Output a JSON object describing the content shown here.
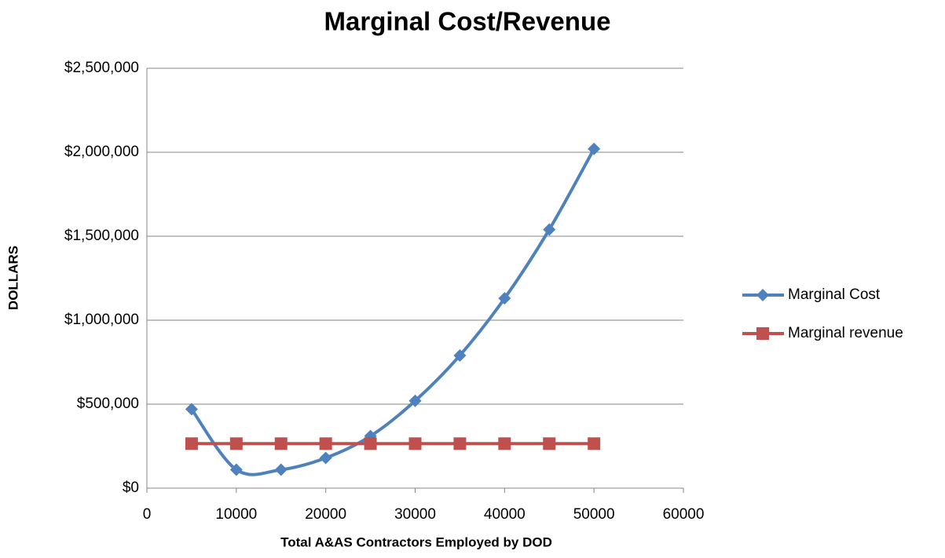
{
  "chart_data": {
    "type": "line",
    "title": "Marginal Cost/Revenue",
    "x_label": "Total A&AS Contractors Employed by DOD",
    "y_label": "DOLLARS",
    "x": [
      5000,
      10000,
      15000,
      20000,
      25000,
      30000,
      35000,
      40000,
      45000,
      50000
    ],
    "series": [
      {
        "name": "Marginal Cost",
        "color": "#4f81bd",
        "marker": "diamond",
        "smooth": true,
        "values": [
          470000,
          110000,
          110000,
          180000,
          310000,
          520000,
          790000,
          1130000,
          1540000,
          2020000
        ]
      },
      {
        "name": "Marginal revenue",
        "color": "#c0504d",
        "marker": "square",
        "smooth": false,
        "values": [
          265000,
          265000,
          265000,
          265000,
          265000,
          265000,
          265000,
          265000,
          265000,
          265000
        ]
      }
    ],
    "xlim": [
      0,
      60000
    ],
    "xticks": [
      0,
      10000,
      20000,
      30000,
      40000,
      50000,
      60000
    ],
    "ylim": [
      0,
      2500000
    ],
    "yticks": [
      {
        "value": 0,
        "label": "$0"
      },
      {
        "value": 500000,
        "label": "$500,000"
      },
      {
        "value": 1000000,
        "label": "$1,000,000"
      },
      {
        "value": 1500000,
        "label": "$1,500,000"
      },
      {
        "value": 2000000,
        "label": "$2,000,000"
      },
      {
        "value": 2500000,
        "label": "$2,500,000"
      }
    ],
    "grid": true,
    "legend": "right"
  }
}
